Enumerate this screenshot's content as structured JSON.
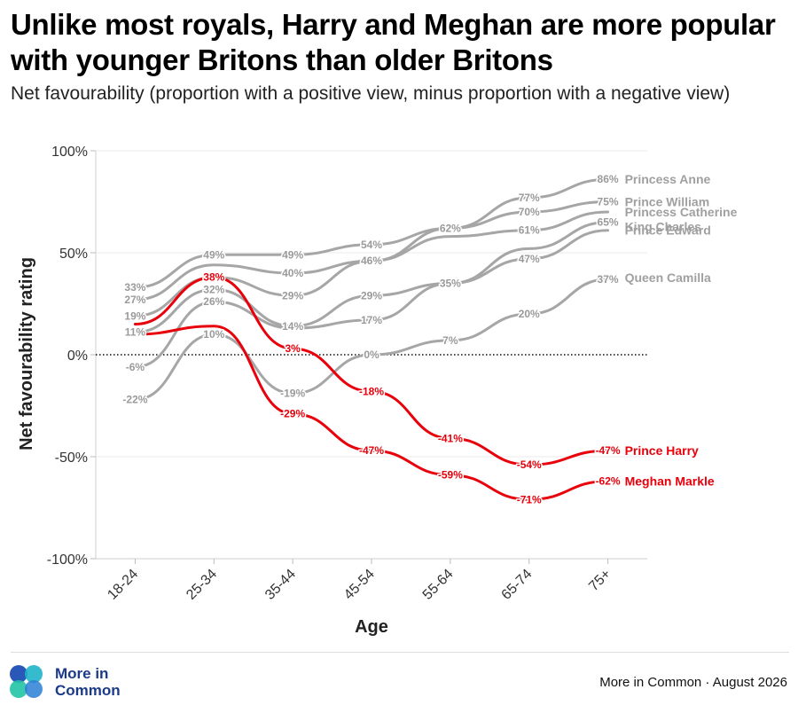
{
  "title": "Unlike most royals, Harry and Meghan are more popular with younger Britons than older Britons",
  "subtitle": "Net favourability (proportion with a positive view, minus proportion with a negative view)",
  "footer": {
    "brand": "More in Common",
    "logo_line1": "More in",
    "logo_line2": "Common",
    "source": "More in Common · August 2026",
    "logo_icon": "more-in-common-logo-icon"
  },
  "chart_data": {
    "type": "line",
    "xlabel": "Age",
    "ylabel": "Net favourability rating",
    "categories": [
      "18-24",
      "25-34",
      "35-44",
      "45-54",
      "55-64",
      "65-74",
      "75+"
    ],
    "ylim": [
      -100,
      100
    ],
    "yticks": [
      {
        "value": 100,
        "label": "100%"
      },
      {
        "value": 50,
        "label": "50%"
      },
      {
        "value": 0,
        "label": "0%"
      },
      {
        "value": -50,
        "label": "-50%"
      },
      {
        "value": -100,
        "label": "-100%"
      }
    ],
    "zero_line": "dotted",
    "colors": {
      "royals": "#a6a6a6",
      "highlight": "#e8000b"
    },
    "series": [
      {
        "name": "Princess Anne",
        "highlight": false,
        "values": [
          33,
          49,
          49,
          54,
          62,
          77,
          86
        ],
        "point_labels": [
          "33%",
          "49%",
          "49%",
          "54%",
          "62%",
          "77%",
          "86%"
        ]
      },
      {
        "name": "Prince William",
        "highlight": false,
        "values": [
          27,
          44,
          40,
          46,
          62,
          70,
          75
        ],
        "point_labels": [
          "27%",
          "",
          "40%",
          "46%",
          "",
          "70%",
          "75%"
        ]
      },
      {
        "name": "Princess Catherine",
        "highlight": false,
        "values": [
          19,
          38,
          29,
          46,
          58,
          61,
          70
        ],
        "point_labels": [
          "19%",
          "",
          "29%",
          "",
          "",
          "61%",
          ""
        ]
      },
      {
        "name": "King Charles",
        "highlight": false,
        "values": [
          11,
          32,
          14,
          29,
          35,
          47,
          61
        ],
        "point_labels": [
          "11%",
          "32%",
          "14%",
          "29%",
          "35%",
          "47%",
          ""
        ]
      },
      {
        "name": "Prince Edward",
        "highlight": false,
        "values": [
          -6,
          26,
          13,
          17,
          35,
          52,
          65
        ],
        "point_labels": [
          "-6%",
          "26%",
          "",
          "17%",
          "",
          "",
          "65%"
        ]
      },
      {
        "name": "Queen Camilla",
        "highlight": false,
        "values": [
          -22,
          10,
          -19,
          0,
          7,
          20,
          37
        ],
        "point_labels": [
          "-22%",
          "10%",
          "-19%",
          "0%",
          "7%",
          "20%",
          "37%"
        ]
      },
      {
        "name": "Prince Harry",
        "highlight": true,
        "values": [
          15,
          38,
          3,
          -18,
          -41,
          -54,
          -47
        ],
        "point_labels": [
          "",
          "38%",
          "3%",
          "-18%",
          "-41%",
          "-54%",
          "-47%"
        ]
      },
      {
        "name": "Meghan Markle",
        "highlight": true,
        "values": [
          10,
          14,
          -29,
          -47,
          -59,
          -71,
          -62
        ],
        "point_labels": [
          "",
          "",
          "-29%",
          "-47%",
          "-59%",
          "-71%",
          "-62%"
        ]
      }
    ],
    "series_label_offsets": [
      0,
      0,
      0,
      -4,
      9,
      -2,
      0,
      0
    ]
  }
}
